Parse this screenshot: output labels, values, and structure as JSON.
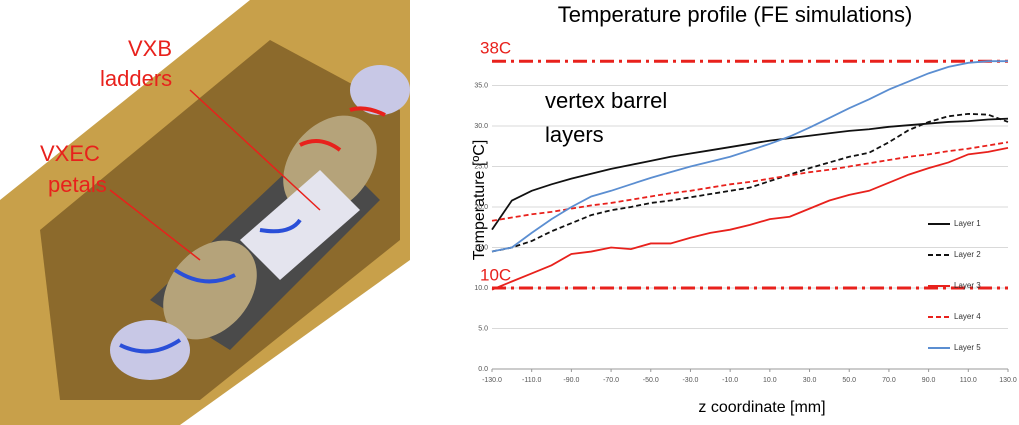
{
  "illustration": {
    "labels": [
      {
        "lines": [
          "VXB",
          "ladders"
        ]
      },
      {
        "lines": [
          "VXEC",
          "petals"
        ]
      }
    ]
  },
  "chart_data": {
    "type": "line",
    "title": "Temperature profile (FE simulations)",
    "x_label": "z coordinate [mm]",
    "y_label": "Temperature [ºC]",
    "annotation": {
      "lines": [
        "vertex barrel",
        "layers"
      ]
    },
    "x": [
      -130,
      -120,
      -110,
      -100,
      -90,
      -80,
      -70,
      -60,
      -50,
      -40,
      -30,
      -20,
      -10,
      0,
      10,
      20,
      30,
      40,
      50,
      60,
      70,
      80,
      90,
      100,
      110,
      120,
      130
    ],
    "series": [
      {
        "name": "Layer 1",
        "color": "#111111",
        "style": "solid",
        "values": [
          17.2,
          20.8,
          22.0,
          22.8,
          23.5,
          24.1,
          24.7,
          25.2,
          25.7,
          26.2,
          26.6,
          27.0,
          27.4,
          27.8,
          28.2,
          28.5,
          28.8,
          29.1,
          29.4,
          29.6,
          29.9,
          30.1,
          30.3,
          30.5,
          30.6,
          30.8,
          30.9
        ]
      },
      {
        "name": "Layer 2",
        "color": "#111111",
        "style": "dashed",
        "values": [
          14.5,
          15.0,
          15.8,
          17.0,
          18.0,
          19.0,
          19.6,
          20.0,
          20.5,
          20.8,
          21.2,
          21.6,
          22.0,
          22.4,
          23.2,
          24.0,
          24.8,
          25.5,
          26.2,
          26.7,
          28.0,
          29.5,
          30.5,
          31.2,
          31.5,
          31.4,
          30.5
        ]
      },
      {
        "name": "Layer 3",
        "color": "#e8211c",
        "style": "solid",
        "values": [
          9.8,
          10.8,
          11.8,
          12.8,
          14.2,
          14.5,
          15.0,
          14.8,
          15.5,
          15.5,
          16.2,
          16.8,
          17.2,
          17.8,
          18.5,
          18.8,
          19.8,
          20.8,
          21.5,
          22.0,
          23.0,
          24.0,
          24.8,
          25.5,
          26.5,
          26.8,
          27.3
        ]
      },
      {
        "name": "Layer 4",
        "color": "#e8211c",
        "style": "dashed",
        "values": [
          18.3,
          18.7,
          19.1,
          19.4,
          19.8,
          20.2,
          20.5,
          20.9,
          21.3,
          21.7,
          22.0,
          22.4,
          22.8,
          23.1,
          23.5,
          23.9,
          24.3,
          24.6,
          25.0,
          25.4,
          25.8,
          26.2,
          26.5,
          26.9,
          27.2,
          27.6,
          28.0
        ]
      },
      {
        "name": "Layer 5",
        "color": "#5b8ed1",
        "style": "solid",
        "values": [
          14.5,
          15.0,
          16.8,
          18.5,
          20.0,
          21.3,
          22.0,
          22.8,
          23.6,
          24.3,
          25.0,
          25.6,
          26.2,
          27.0,
          27.8,
          28.7,
          29.8,
          31.0,
          32.2,
          33.3,
          34.5,
          35.5,
          36.5,
          37.3,
          37.8,
          38.0,
          38.0
        ]
      }
    ],
    "reference_lines": [
      {
        "value": 38,
        "label": "38C",
        "color": "#e8211c"
      },
      {
        "value": 10,
        "label": "10C",
        "color": "#e8211c"
      }
    ],
    "xlim": [
      -130,
      130
    ],
    "xticks": [
      {
        "value": -130,
        "label": "-130.0"
      },
      {
        "value": -110,
        "label": "-110.0"
      },
      {
        "value": -90,
        "label": "-90.0"
      },
      {
        "value": -70,
        "label": "-70.0"
      },
      {
        "value": -50,
        "label": "-50.0"
      },
      {
        "value": -30,
        "label": "-30.0"
      },
      {
        "value": -10,
        "label": "-10.0"
      },
      {
        "value": 10,
        "label": "10.0"
      },
      {
        "value": 30,
        "label": "30.0"
      },
      {
        "value": 50,
        "label": "50.0"
      },
      {
        "value": 70,
        "label": "70.0"
      },
      {
        "value": 90,
        "label": "90.0"
      },
      {
        "value": 110,
        "label": "110.0"
      },
      {
        "value": 130,
        "label": "130.0"
      }
    ],
    "ylim": [
      0,
      40
    ],
    "yticks": [
      {
        "value": 0,
        "label": "0.0"
      },
      {
        "value": 5,
        "label": "5.0"
      },
      {
        "value": 10,
        "label": "10.0"
      },
      {
        "value": 15,
        "label": "15.0"
      },
      {
        "value": 20,
        "label": "20.0"
      },
      {
        "value": 25,
        "label": "25.0"
      },
      {
        "value": 30,
        "label": "30.0"
      },
      {
        "value": 35,
        "label": "35.0"
      }
    ],
    "grid": true,
    "legend": "right"
  }
}
